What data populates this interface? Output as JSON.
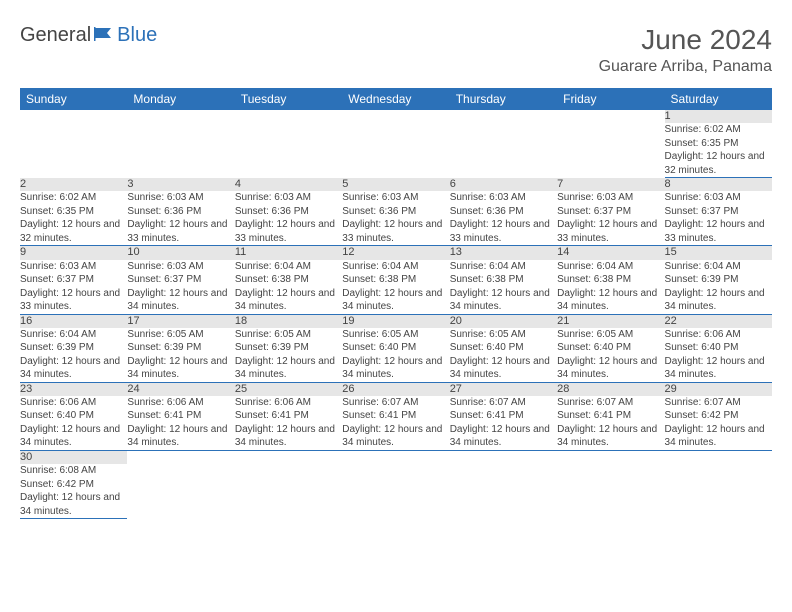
{
  "brand": {
    "part1": "General",
    "part2": "Blue"
  },
  "title": "June 2024",
  "location": "Guarare Arriba, Panama",
  "colors": {
    "header_bg": "#2c71b8",
    "header_text": "#ffffff",
    "daynum_bg": "#e6e6e6",
    "rule": "#2c71b8",
    "body_text": "#444444",
    "flag": "#2c71b8"
  },
  "weekdays": [
    "Sunday",
    "Monday",
    "Tuesday",
    "Wednesday",
    "Thursday",
    "Friday",
    "Saturday"
  ],
  "weeks": [
    [
      null,
      null,
      null,
      null,
      null,
      null,
      {
        "n": "1",
        "sr": "6:02 AM",
        "ss": "6:35 PM",
        "dl": "12 hours and 32 minutes."
      }
    ],
    [
      {
        "n": "2",
        "sr": "6:02 AM",
        "ss": "6:35 PM",
        "dl": "12 hours and 32 minutes."
      },
      {
        "n": "3",
        "sr": "6:03 AM",
        "ss": "6:36 PM",
        "dl": "12 hours and 33 minutes."
      },
      {
        "n": "4",
        "sr": "6:03 AM",
        "ss": "6:36 PM",
        "dl": "12 hours and 33 minutes."
      },
      {
        "n": "5",
        "sr": "6:03 AM",
        "ss": "6:36 PM",
        "dl": "12 hours and 33 minutes."
      },
      {
        "n": "6",
        "sr": "6:03 AM",
        "ss": "6:36 PM",
        "dl": "12 hours and 33 minutes."
      },
      {
        "n": "7",
        "sr": "6:03 AM",
        "ss": "6:37 PM",
        "dl": "12 hours and 33 minutes."
      },
      {
        "n": "8",
        "sr": "6:03 AM",
        "ss": "6:37 PM",
        "dl": "12 hours and 33 minutes."
      }
    ],
    [
      {
        "n": "9",
        "sr": "6:03 AM",
        "ss": "6:37 PM",
        "dl": "12 hours and 33 minutes."
      },
      {
        "n": "10",
        "sr": "6:03 AM",
        "ss": "6:37 PM",
        "dl": "12 hours and 34 minutes."
      },
      {
        "n": "11",
        "sr": "6:04 AM",
        "ss": "6:38 PM",
        "dl": "12 hours and 34 minutes."
      },
      {
        "n": "12",
        "sr": "6:04 AM",
        "ss": "6:38 PM",
        "dl": "12 hours and 34 minutes."
      },
      {
        "n": "13",
        "sr": "6:04 AM",
        "ss": "6:38 PM",
        "dl": "12 hours and 34 minutes."
      },
      {
        "n": "14",
        "sr": "6:04 AM",
        "ss": "6:38 PM",
        "dl": "12 hours and 34 minutes."
      },
      {
        "n": "15",
        "sr": "6:04 AM",
        "ss": "6:39 PM",
        "dl": "12 hours and 34 minutes."
      }
    ],
    [
      {
        "n": "16",
        "sr": "6:04 AM",
        "ss": "6:39 PM",
        "dl": "12 hours and 34 minutes."
      },
      {
        "n": "17",
        "sr": "6:05 AM",
        "ss": "6:39 PM",
        "dl": "12 hours and 34 minutes."
      },
      {
        "n": "18",
        "sr": "6:05 AM",
        "ss": "6:39 PM",
        "dl": "12 hours and 34 minutes."
      },
      {
        "n": "19",
        "sr": "6:05 AM",
        "ss": "6:40 PM",
        "dl": "12 hours and 34 minutes."
      },
      {
        "n": "20",
        "sr": "6:05 AM",
        "ss": "6:40 PM",
        "dl": "12 hours and 34 minutes."
      },
      {
        "n": "21",
        "sr": "6:05 AM",
        "ss": "6:40 PM",
        "dl": "12 hours and 34 minutes."
      },
      {
        "n": "22",
        "sr": "6:06 AM",
        "ss": "6:40 PM",
        "dl": "12 hours and 34 minutes."
      }
    ],
    [
      {
        "n": "23",
        "sr": "6:06 AM",
        "ss": "6:40 PM",
        "dl": "12 hours and 34 minutes."
      },
      {
        "n": "24",
        "sr": "6:06 AM",
        "ss": "6:41 PM",
        "dl": "12 hours and 34 minutes."
      },
      {
        "n": "25",
        "sr": "6:06 AM",
        "ss": "6:41 PM",
        "dl": "12 hours and 34 minutes."
      },
      {
        "n": "26",
        "sr": "6:07 AM",
        "ss": "6:41 PM",
        "dl": "12 hours and 34 minutes."
      },
      {
        "n": "27",
        "sr": "6:07 AM",
        "ss": "6:41 PM",
        "dl": "12 hours and 34 minutes."
      },
      {
        "n": "28",
        "sr": "6:07 AM",
        "ss": "6:41 PM",
        "dl": "12 hours and 34 minutes."
      },
      {
        "n": "29",
        "sr": "6:07 AM",
        "ss": "6:42 PM",
        "dl": "12 hours and 34 minutes."
      }
    ],
    [
      {
        "n": "30",
        "sr": "6:08 AM",
        "ss": "6:42 PM",
        "dl": "12 hours and 34 minutes."
      },
      null,
      null,
      null,
      null,
      null,
      null
    ]
  ],
  "labels": {
    "sunrise": "Sunrise:",
    "sunset": "Sunset:",
    "daylight": "Daylight:"
  }
}
